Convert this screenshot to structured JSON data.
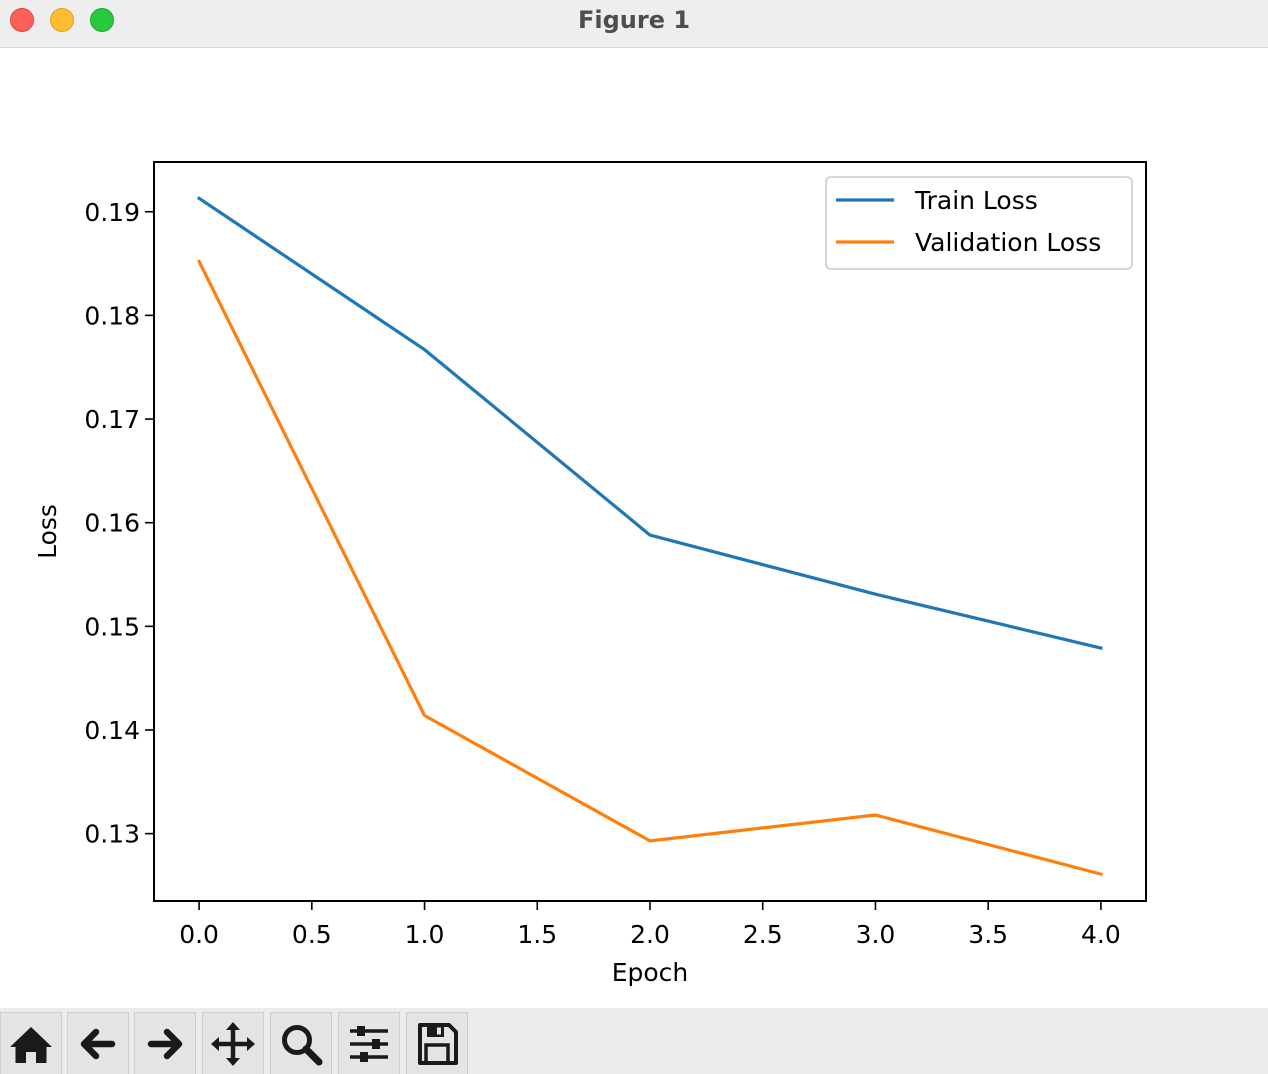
{
  "window": {
    "title": "Figure 1"
  },
  "toolbar": {
    "buttons": [
      {
        "name": "home-icon"
      },
      {
        "name": "back-arrow-icon"
      },
      {
        "name": "forward-arrow-icon"
      },
      {
        "name": "pan-move-icon"
      },
      {
        "name": "zoom-magnifier-icon"
      },
      {
        "name": "configure-subplots-icon"
      },
      {
        "name": "save-floppy-icon"
      }
    ]
  },
  "chart_data": {
    "type": "line",
    "title": "",
    "xlabel": "Epoch",
    "ylabel": "Loss",
    "xlim": [
      -0.2,
      4.2
    ],
    "ylim": [
      0.1235,
      0.1948
    ],
    "xticks": [
      0.0,
      0.5,
      1.0,
      1.5,
      2.0,
      2.5,
      3.0,
      3.5,
      4.0
    ],
    "xtick_labels": [
      "0.0",
      "0.5",
      "1.0",
      "1.5",
      "2.0",
      "2.5",
      "3.0",
      "3.5",
      "4.0"
    ],
    "yticks": [
      0.13,
      0.14,
      0.15,
      0.16,
      0.17,
      0.18,
      0.19
    ],
    "ytick_labels": [
      "0.13",
      "0.14",
      "0.15",
      "0.16",
      "0.17",
      "0.18",
      "0.19"
    ],
    "grid": false,
    "legend": "upper right",
    "x": [
      0,
      1,
      2,
      3,
      4
    ],
    "series": [
      {
        "name": "Train Loss",
        "color": "#1f77b4",
        "values": [
          0.1913,
          0.1767,
          0.1588,
          0.1531,
          0.1479
        ]
      },
      {
        "name": "Validation Loss",
        "color": "#ff7f0e",
        "values": [
          0.1852,
          0.1414,
          0.1293,
          0.1318,
          0.1261
        ]
      }
    ]
  }
}
